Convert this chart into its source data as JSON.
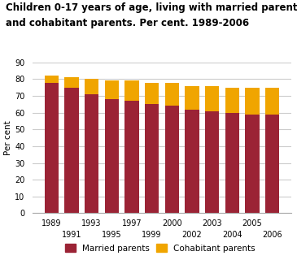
{
  "title_line1": "Children 0-17 years of age, living with married parents",
  "title_line2": "and cohabitant parents. Per cent. 1989-2006",
  "ylabel": "Per cent",
  "years": [
    "1989",
    "1991",
    "1993",
    "1995",
    "1997",
    "1999",
    "2000",
    "2002",
    "2003",
    "2004",
    "2005",
    "2006"
  ],
  "married": [
    78,
    75,
    71,
    68,
    67,
    65,
    64,
    62,
    61,
    60,
    59,
    59
  ],
  "cohabitant": [
    4,
    6,
    9,
    11,
    12,
    13,
    14,
    14,
    15,
    15,
    16,
    16
  ],
  "married_color": "#9B2335",
  "cohabitant_color": "#F0A500",
  "background_color": "#ffffff",
  "grid_color": "#cccccc",
  "ylim": [
    0,
    90
  ],
  "yticks": [
    0,
    10,
    20,
    30,
    40,
    50,
    60,
    70,
    80,
    90
  ],
  "legend_married": "Married parents",
  "legend_cohabitant": "Cohabitant parents",
  "title_fontsize": 8.5,
  "axis_fontsize": 7.5,
  "tick_fontsize": 7.0
}
